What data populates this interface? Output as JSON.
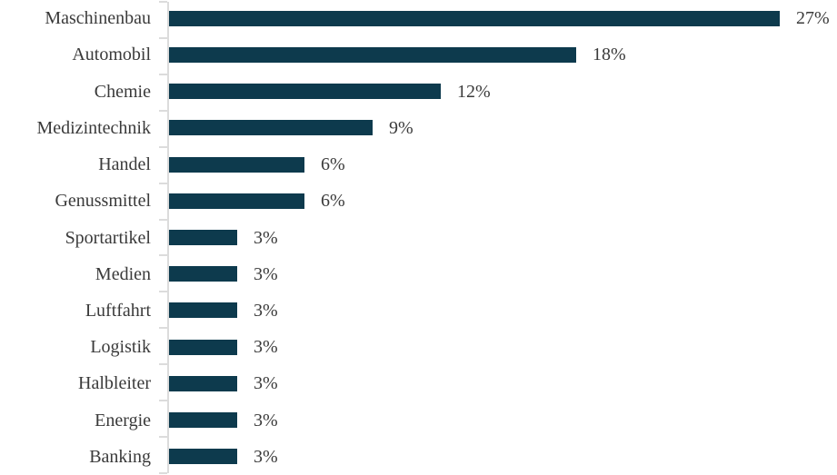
{
  "chart_data": {
    "type": "bar",
    "orientation": "horizontal",
    "title": "",
    "xlabel": "",
    "ylabel": "",
    "categories": [
      "Maschinenbau",
      "Automobil",
      "Chemie",
      "Medizintechnik",
      "Handel",
      "Genussmittel",
      "Sportartikel",
      "Medien",
      "Luftfahrt",
      "Logistik",
      "Halbleiter",
      "Energie",
      "Banking"
    ],
    "values": [
      27,
      18,
      12,
      9,
      6,
      6,
      3,
      3,
      3,
      3,
      3,
      3,
      3
    ],
    "value_labels": [
      "27%",
      "18%",
      "12%",
      "9%",
      "6%",
      "6%",
      "3%",
      "3%",
      "3%",
      "3%",
      "3%",
      "3%",
      "3%"
    ],
    "xlim": [
      0,
      28
    ],
    "grid": false,
    "legend_position": "none",
    "bar_color": "#0d3a4d",
    "axis_color": "#dcdcdc",
    "text_color": "#3a3a3a"
  }
}
